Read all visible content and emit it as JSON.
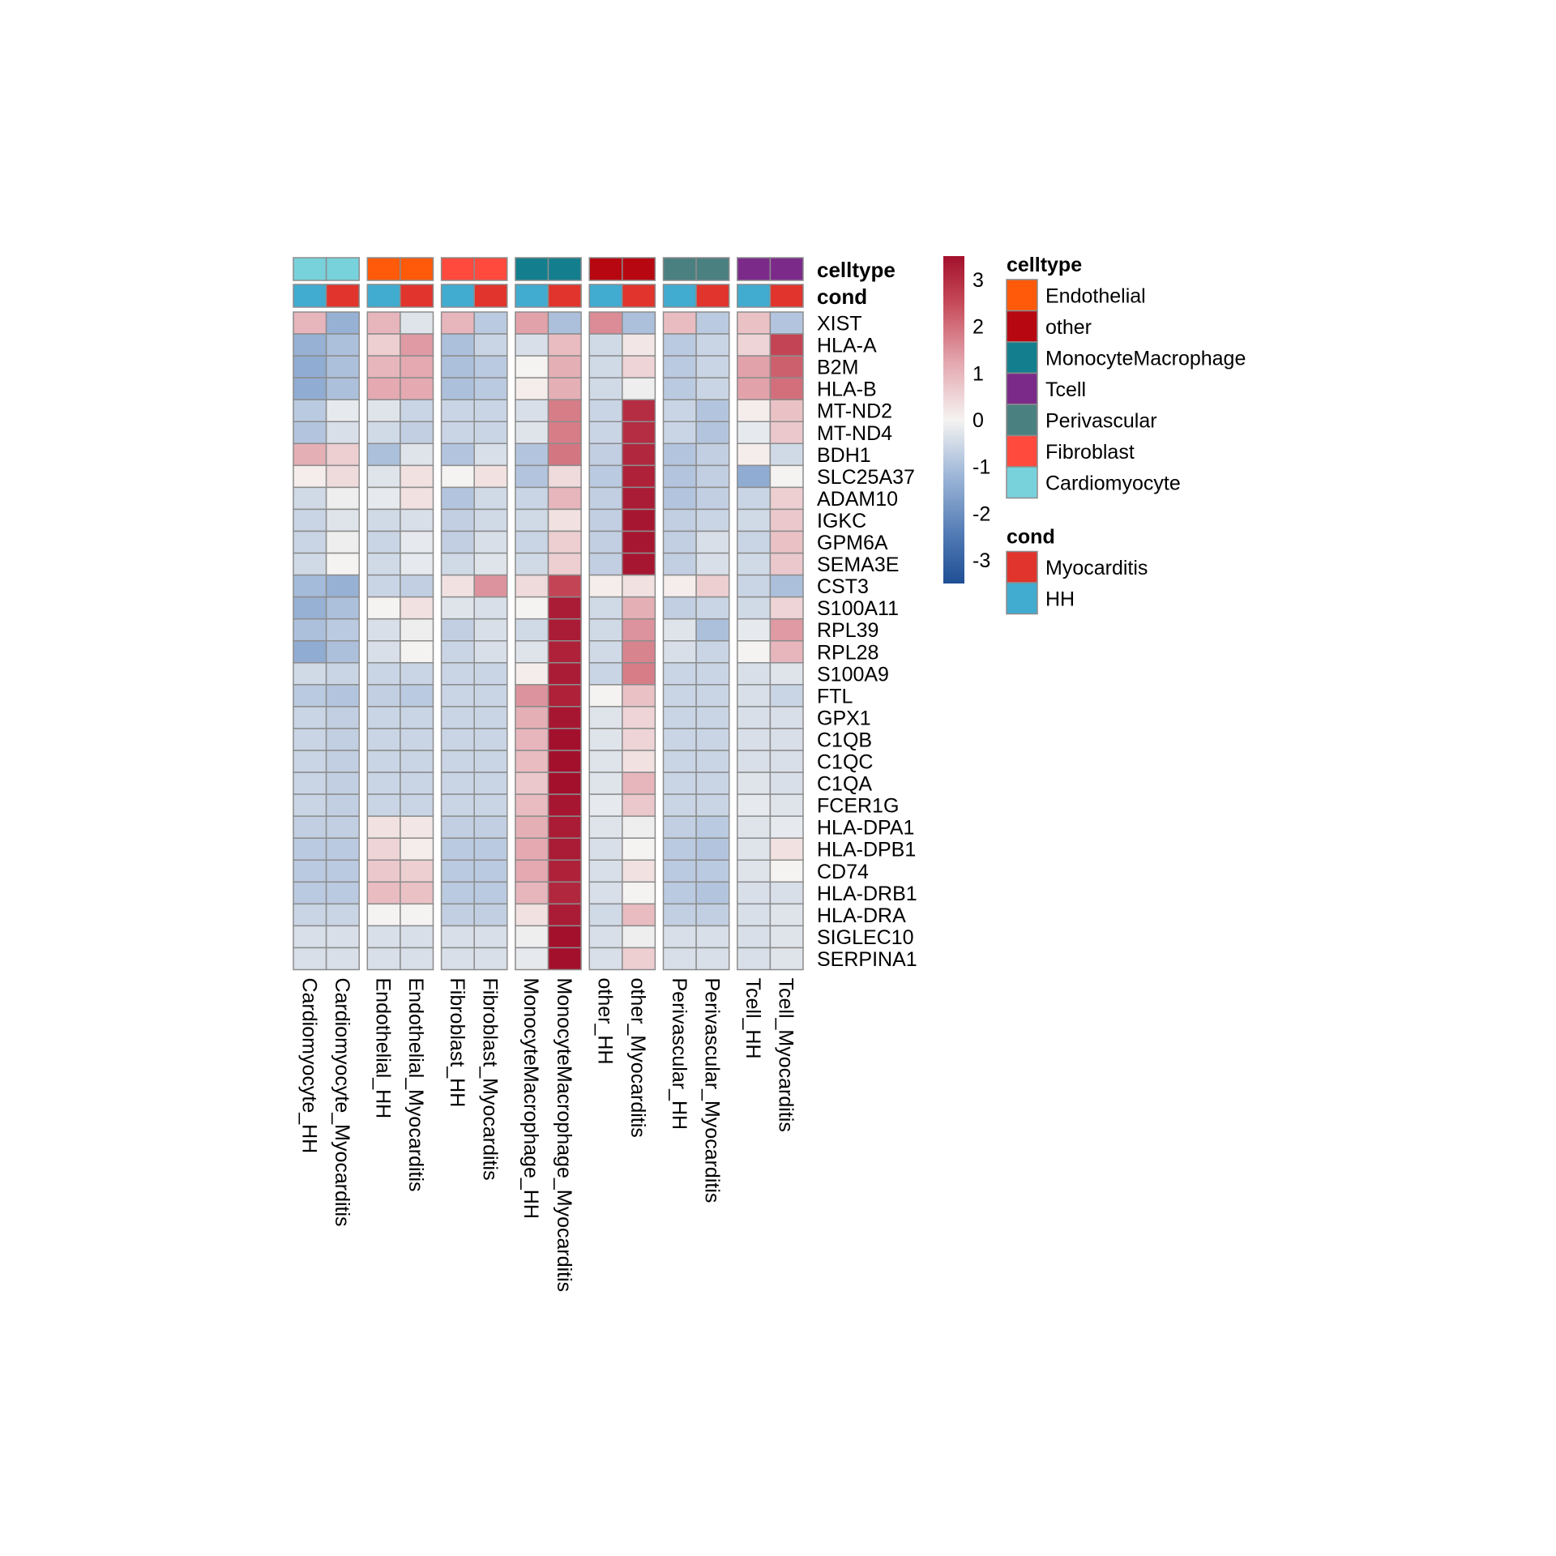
{
  "chart_data": {
    "type": "heatmap",
    "title": "",
    "color_scale": {
      "min": -3.5,
      "max": 3.5,
      "ticks": [
        3,
        2,
        1,
        0,
        -1,
        -2,
        -3
      ],
      "tick_labels": [
        "3",
        "2",
        "1",
        "0",
        "-1",
        "-2",
        "-3"
      ],
      "stops": [
        {
          "value": -3.5,
          "color": "#1f4f94"
        },
        {
          "value": -2.5,
          "color": "#4f78b3"
        },
        {
          "value": -1.2,
          "color": "#9db6d8"
        },
        {
          "value": 0,
          "color": "#f5f3f1"
        },
        {
          "value": 1.2,
          "color": "#e4a9b1"
        },
        {
          "value": 2.5,
          "color": "#c64a59"
        },
        {
          "value": 3.5,
          "color": "#a3102c"
        }
      ]
    },
    "columns": [
      "Cardiomyocyte_HH",
      "Cardiomyocyte_Myocarditis",
      "Endothelial_HH",
      "Endothelial_Myocarditis",
      "Fibroblast_HH",
      "Fibroblast_Myocarditis",
      "MonocyteMacrophage_HH",
      "MonocyteMacrophage_Myocarditis",
      "other_HH",
      "other_Myocarditis",
      "Perivascular_HH",
      "Perivascular_Myocarditis",
      "Tcell_HH",
      "Tcell_Myocarditis"
    ],
    "column_groups": [
      {
        "celltype": "Cardiomyocyte",
        "columns": [
          0,
          1
        ]
      },
      {
        "celltype": "Endothelial",
        "columns": [
          2,
          3
        ]
      },
      {
        "celltype": "Fibroblast",
        "columns": [
          4,
          5
        ]
      },
      {
        "celltype": "MonocyteMacrophage",
        "columns": [
          6,
          7
        ]
      },
      {
        "celltype": "other",
        "columns": [
          8,
          9
        ]
      },
      {
        "celltype": "Perivascular",
        "columns": [
          10,
          11
        ]
      },
      {
        "celltype": "Tcell",
        "columns": [
          12,
          13
        ]
      }
    ],
    "column_conditions": [
      "HH",
      "Myocarditis",
      "HH",
      "Myocarditis",
      "HH",
      "Myocarditis",
      "HH",
      "Myocarditis",
      "HH",
      "Myocarditis",
      "HH",
      "Myocarditis",
      "HH",
      "Myocarditis"
    ],
    "rows": [
      "XIST",
      "HLA-A",
      "B2M",
      "HLA-B",
      "MT-ND2",
      "MT-ND4",
      "BDH1",
      "SLC25A37",
      "ADAM10",
      "IGKC",
      "GPM6A",
      "SEMA3E",
      "CST3",
      "S100A11",
      "RPL39",
      "RPL28",
      "S100A9",
      "FTL",
      "GPX1",
      "C1QB",
      "C1QC",
      "C1QA",
      "FCER1G",
      "HLA-DPA1",
      "HLA-DPB1",
      "CD74",
      "HLA-DRB1",
      "HLA-DRA",
      "SIGLEC10",
      "SERPINA1"
    ],
    "values": [
      [
        1.0,
        -1.3,
        1.0,
        -0.3,
        1.0,
        -0.8,
        1.3,
        -1.0,
        1.6,
        -1.0,
        0.9,
        -0.8,
        0.8,
        -0.9
      ],
      [
        -1.3,
        -1.0,
        0.6,
        1.4,
        -1.0,
        -0.6,
        -0.4,
        0.9,
        -0.5,
        0.2,
        -0.8,
        -0.6,
        0.5,
        2.6
      ],
      [
        -1.4,
        -1.0,
        1.0,
        1.2,
        -1.0,
        -0.8,
        0.0,
        1.1,
        -0.5,
        0.5,
        -0.8,
        -0.6,
        1.3,
        2.2
      ],
      [
        -1.4,
        -1.0,
        1.2,
        1.2,
        -1.0,
        -0.8,
        0.1,
        1.1,
        -0.5,
        -0.1,
        -0.8,
        -0.6,
        1.3,
        2.0
      ],
      [
        -0.8,
        -0.2,
        -0.3,
        -0.6,
        -0.6,
        -0.6,
        -0.4,
        1.8,
        -0.6,
        3.0,
        -0.6,
        -0.9,
        0.1,
        0.8
      ],
      [
        -0.9,
        -0.4,
        -0.5,
        -0.7,
        -0.6,
        -0.6,
        -0.3,
        1.8,
        -0.6,
        3.0,
        -0.6,
        -0.9,
        -0.2,
        0.7
      ],
      [
        1.1,
        0.6,
        -1.0,
        -0.3,
        -0.9,
        -0.4,
        -0.9,
        1.9,
        -0.7,
        3.1,
        -0.9,
        -0.7,
        0.1,
        -0.5
      ],
      [
        0.1,
        0.4,
        -0.3,
        0.3,
        0.0,
        0.3,
        -0.9,
        0.4,
        -0.8,
        3.2,
        -0.9,
        -0.7,
        -1.4,
        0.0
      ],
      [
        -0.5,
        -0.1,
        -0.2,
        0.3,
        -0.9,
        -0.5,
        -0.6,
        1.0,
        -0.7,
        3.3,
        -0.9,
        -0.7,
        -0.6,
        0.6
      ],
      [
        -0.6,
        -0.3,
        -0.5,
        -0.4,
        -0.7,
        -0.5,
        -0.5,
        0.3,
        -0.7,
        3.4,
        -0.7,
        -0.6,
        -0.5,
        0.7
      ],
      [
        -0.6,
        -0.1,
        -0.6,
        -0.2,
        -0.7,
        -0.4,
        -0.6,
        0.6,
        -0.7,
        3.4,
        -0.7,
        -0.4,
        -0.6,
        0.8
      ],
      [
        -0.5,
        0.0,
        -0.5,
        -0.2,
        -0.5,
        -0.3,
        -0.5,
        0.6,
        -0.7,
        3.4,
        -0.7,
        -0.4,
        -0.5,
        0.7
      ],
      [
        -1.1,
        -1.3,
        -0.6,
        -0.7,
        0.3,
        1.5,
        0.4,
        2.6,
        0.1,
        0.3,
        0.1,
        0.6,
        -0.6,
        -1.0
      ],
      [
        -1.3,
        -1.0,
        0.0,
        0.3,
        -0.3,
        -0.4,
        0.0,
        3.3,
        -0.5,
        1.1,
        -0.7,
        -0.6,
        -0.5,
        0.5
      ],
      [
        -1.0,
        -0.8,
        -0.4,
        -0.1,
        -0.7,
        -0.4,
        -0.5,
        3.3,
        -0.5,
        1.5,
        -0.3,
        -1.0,
        -0.2,
        1.4
      ],
      [
        -1.4,
        -1.0,
        -0.4,
        0.0,
        -0.6,
        -0.4,
        -0.3,
        3.2,
        -0.5,
        1.7,
        -0.4,
        -0.6,
        0.0,
        1.0
      ],
      [
        -0.5,
        -0.6,
        -0.6,
        -0.6,
        -0.6,
        -0.6,
        0.1,
        3.3,
        -0.6,
        1.8,
        -0.6,
        -0.6,
        -0.4,
        -0.3
      ],
      [
        -0.8,
        -0.9,
        -0.7,
        -0.8,
        -0.6,
        -0.6,
        1.5,
        3.2,
        0.0,
        0.8,
        -0.6,
        -0.6,
        -0.4,
        -0.6
      ],
      [
        -0.6,
        -0.7,
        -0.6,
        -0.6,
        -0.6,
        -0.6,
        1.1,
        3.4,
        -0.3,
        0.5,
        -0.6,
        -0.6,
        -0.4,
        -0.4
      ],
      [
        -0.6,
        -0.7,
        -0.6,
        -0.6,
        -0.6,
        -0.6,
        1.0,
        3.5,
        -0.3,
        0.5,
        -0.6,
        -0.6,
        -0.4,
        -0.4
      ],
      [
        -0.6,
        -0.7,
        -0.6,
        -0.6,
        -0.6,
        -0.6,
        0.9,
        3.5,
        -0.3,
        0.3,
        -0.6,
        -0.6,
        -0.4,
        -0.4
      ],
      [
        -0.6,
        -0.7,
        -0.6,
        -0.6,
        -0.6,
        -0.6,
        0.7,
        3.5,
        -0.3,
        1.0,
        -0.6,
        -0.6,
        -0.3,
        -0.4
      ],
      [
        -0.6,
        -0.7,
        -0.6,
        -0.6,
        -0.6,
        -0.6,
        0.9,
        3.4,
        -0.2,
        0.7,
        -0.6,
        -0.6,
        -0.2,
        -0.3
      ],
      [
        -0.7,
        -0.7,
        0.3,
        0.2,
        -0.7,
        -0.7,
        1.1,
        3.3,
        -0.3,
        -0.1,
        -0.7,
        -0.8,
        -0.3,
        -0.2
      ],
      [
        -0.8,
        -0.8,
        0.5,
        0.1,
        -0.8,
        -0.8,
        1.2,
        3.3,
        -0.4,
        0.0,
        -0.8,
        -0.9,
        -0.3,
        0.3
      ],
      [
        -0.8,
        -0.8,
        0.7,
        0.6,
        -0.8,
        -0.8,
        1.2,
        3.2,
        -0.4,
        0.3,
        -0.8,
        -0.8,
        -0.3,
        0.0
      ],
      [
        -0.8,
        -0.8,
        0.9,
        0.8,
        -0.8,
        -0.8,
        1.0,
        3.1,
        -0.4,
        0.0,
        -0.8,
        -0.9,
        -0.4,
        -0.4
      ],
      [
        -0.6,
        -0.6,
        0.0,
        0.0,
        -0.7,
        -0.7,
        0.3,
        3.3,
        -0.5,
        0.9,
        -0.7,
        -0.7,
        -0.4,
        -0.3
      ],
      [
        -0.4,
        -0.4,
        -0.4,
        -0.4,
        -0.4,
        -0.4,
        -0.1,
        3.6,
        -0.4,
        -0.1,
        -0.4,
        -0.4,
        -0.4,
        -0.3
      ],
      [
        -0.4,
        -0.4,
        -0.4,
        -0.4,
        -0.4,
        -0.4,
        -0.2,
        3.6,
        -0.4,
        0.6,
        -0.4,
        -0.4,
        -0.4,
        -0.3
      ]
    ],
    "annotation_rows": [
      "celltype",
      "cond"
    ],
    "legends": {
      "celltype": {
        "title": "celltype",
        "items": [
          {
            "label": "Endothelial",
            "color": "#ff5a0a"
          },
          {
            "label": "other",
            "color": "#b70710"
          },
          {
            "label": "MonocyteMacrophage",
            "color": "#137e8e"
          },
          {
            "label": "Tcell",
            "color": "#7b2a8a"
          },
          {
            "label": "Perivascular",
            "color": "#4b8081"
          },
          {
            "label": "Fibroblast",
            "color": "#ff4a3d"
          },
          {
            "label": "Cardiomyocyte",
            "color": "#78d2dc"
          }
        ]
      },
      "cond": {
        "title": "cond",
        "items": [
          {
            "label": "Myocarditis",
            "color": "#e0342c"
          },
          {
            "label": "HH",
            "color": "#42abd0"
          }
        ]
      }
    }
  }
}
